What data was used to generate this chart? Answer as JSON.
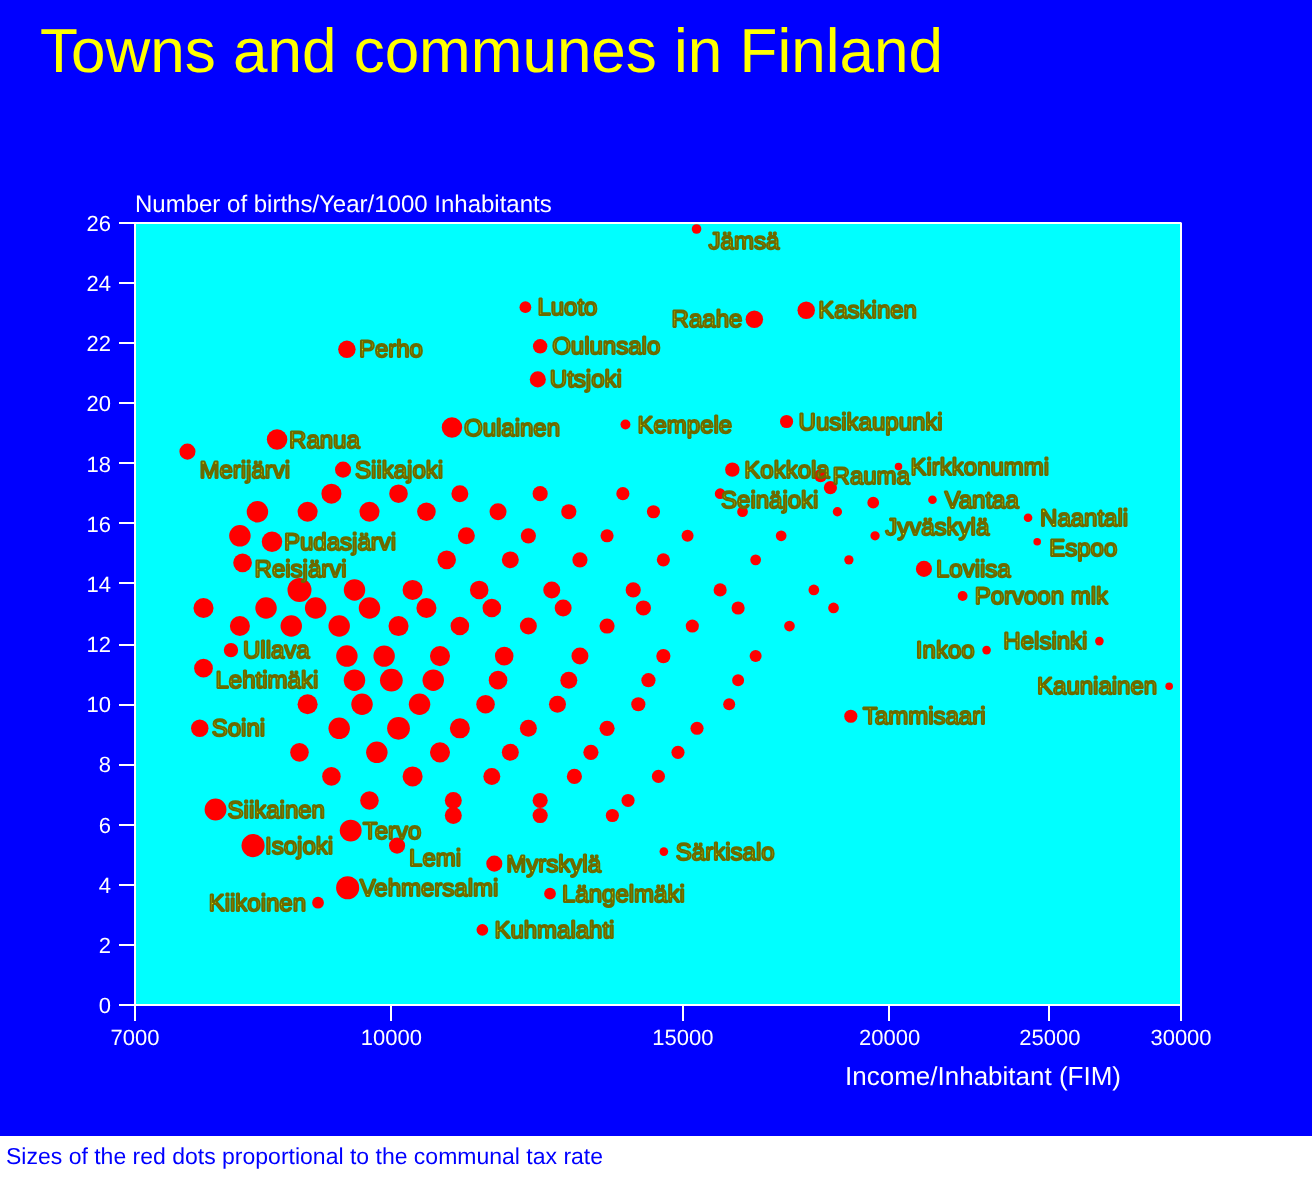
{
  "chart_data": {
    "type": "bubble",
    "title": "Towns and communes in Finland",
    "xlabel": "Income/Inhabitant (FIM)",
    "ylabel": "Number of births/Year/1000 Inhabitants",
    "log": "x",
    "marker": "circle",
    "xlim": [
      7000,
      30000
    ],
    "ylim": [
      0,
      26
    ],
    "xticks": [
      7000,
      10000,
      15000,
      20000,
      25000,
      30000
    ],
    "yticks": [
      0,
      2,
      4,
      6,
      8,
      10,
      12,
      14,
      16,
      18,
      20,
      22,
      24,
      26
    ],
    "series": [
      {
        "color": "#ff0000",
        "x": [
          15290,
          17810,
          16570,
          12050,
          12300,
          9400,
          12260,
          10880,
          13850,
          17330,
          8530,
          7530,
          9350,
          20250,
          16070,
          18170,
          18420,
          21230,
          19550,
          24250,
          24560,
          8470,
          8130,
          20980,
          22140,
          26780,
          22890,
          8000,
          7700,
          29510,
          18950,
          7660,
          7830,
          9450,
          8250,
          10080,
          14610,
          11540,
          9410,
          12470,
          9030,
          11350,
          9200,
          10100,
          11000,
          12300,
          13800,
          15800,
          8300,
          8900,
          9700,
          10500,
          11600,
          12800,
          14400,
          16300,
          18600,
          8100,
          11100,
          12100,
          13500,
          15100,
          17200,
          19600,
          10800,
          11800,
          13000,
          14600,
          16600,
          18900,
          8800,
          9500,
          10300,
          11300,
          12500,
          14000,
          15800,
          18000,
          7700,
          8400,
          9000,
          9700,
          10500,
          11500,
          12700,
          14200,
          16200,
          18500,
          8100,
          8700,
          9300,
          10100,
          11000,
          12100,
          13500,
          15200,
          17400,
          9400,
          9900,
          10700,
          11700,
          13000,
          14600,
          16600,
          9500,
          10000,
          10600,
          11600,
          12800,
          14300,
          16200,
          8900,
          9600,
          10400,
          11400,
          12600,
          14100,
          16000,
          9300,
          10100,
          11000,
          12100,
          13500,
          15300,
          8800,
          9800,
          10700,
          11800,
          13200,
          14900,
          9200,
          10300,
          11500,
          12900,
          14500,
          9700,
          10900,
          12300,
          13900,
          10900,
          12300,
          13600
        ],
        "values": [
          25.8,
          23.1,
          22.8,
          23.2,
          21.9,
          21.8,
          20.8,
          19.2,
          19.3,
          19.4,
          18.8,
          18.4,
          17.8,
          17.9,
          17.8,
          17.6,
          17.2,
          16.8,
          16.7,
          16.2,
          15.4,
          15.4,
          14.7,
          14.5,
          13.6,
          12.1,
          11.8,
          11.8,
          11.2,
          10.6,
          9.6,
          9.2,
          6.5,
          5.8,
          5.3,
          5.3,
          5.1,
          4.7,
          3.9,
          3.7,
          3.4,
          2.5,
          17.0,
          17.0,
          17.0,
          17.0,
          17.0,
          17.0,
          16.4,
          16.4,
          16.4,
          16.4,
          16.4,
          16.4,
          16.4,
          16.4,
          16.4,
          15.6,
          15.6,
          15.6,
          15.6,
          15.6,
          15.6,
          15.6,
          14.8,
          14.8,
          14.8,
          14.8,
          14.8,
          14.8,
          13.8,
          13.8,
          13.8,
          13.8,
          13.8,
          13.8,
          13.8,
          13.8,
          13.2,
          13.2,
          13.2,
          13.2,
          13.2,
          13.2,
          13.2,
          13.2,
          13.2,
          13.2,
          12.6,
          12.6,
          12.6,
          12.6,
          12.6,
          12.6,
          12.6,
          12.6,
          12.6,
          11.6,
          11.6,
          11.6,
          11.6,
          11.6,
          11.6,
          11.6,
          10.8,
          10.8,
          10.8,
          10.8,
          10.8,
          10.8,
          10.8,
          10.0,
          10.0,
          10.0,
          10.0,
          10.0,
          10.0,
          10.0,
          9.2,
          9.2,
          9.2,
          9.2,
          9.2,
          9.2,
          8.4,
          8.4,
          8.4,
          8.4,
          8.4,
          8.4,
          7.6,
          7.6,
          7.6,
          7.6,
          7.6,
          6.8,
          6.8,
          6.8,
          6.8,
          6.3,
          6.3,
          6.3
        ],
        "sizes": [
          0.16,
          0.53,
          0.53,
          0.24,
          0.36,
          0.53,
          0.45,
          0.73,
          0.17,
          0.3,
          0.73,
          0.45,
          0.45,
          0.1,
          0.36,
          0.3,
          0.3,
          0.13,
          0.24,
          0.13,
          0.1,
          0.73,
          0.61,
          0.45,
          0.17,
          0.13,
          0.13,
          0.36,
          0.61,
          0.1,
          0.3,
          0.53,
          0.83,
          0.83,
          0.93,
          0.45,
          0.13,
          0.45,
          0.93,
          0.24,
          0.24,
          0.24,
          0.7,
          0.6,
          0.5,
          0.4,
          0.3,
          0.2,
          0.8,
          0.7,
          0.7,
          0.6,
          0.5,
          0.4,
          0.3,
          0.2,
          0.15,
          0.8,
          0.5,
          0.4,
          0.3,
          0.25,
          0.2,
          0.15,
          0.6,
          0.5,
          0.4,
          0.3,
          0.2,
          0.15,
          1.0,
          0.8,
          0.7,
          0.6,
          0.5,
          0.4,
          0.3,
          0.2,
          0.7,
          0.8,
          0.8,
          0.8,
          0.7,
          0.6,
          0.5,
          0.4,
          0.3,
          0.2,
          0.7,
          0.8,
          0.8,
          0.7,
          0.6,
          0.5,
          0.4,
          0.3,
          0.2,
          0.8,
          0.8,
          0.7,
          0.6,
          0.5,
          0.35,
          0.25,
          0.8,
          0.9,
          0.8,
          0.6,
          0.5,
          0.35,
          0.25,
          0.7,
          0.8,
          0.8,
          0.6,
          0.5,
          0.35,
          0.25,
          0.8,
          0.9,
          0.7,
          0.5,
          0.4,
          0.3,
          0.6,
          0.8,
          0.7,
          0.5,
          0.4,
          0.3,
          0.6,
          0.7,
          0.5,
          0.4,
          0.3,
          0.6,
          0.5,
          0.4,
          0.3,
          0.5,
          0.4,
          0.3
        ]
      }
    ],
    "annotations": [
      {
        "text": "Jämsä",
        "x": 15290,
        "y": 25.8
      },
      {
        "text": "Kaskinen",
        "x": 17810,
        "y": 23.1
      },
      {
        "text": "Raahe",
        "x": 16570,
        "y": 22.8
      },
      {
        "text": "Luoto",
        "x": 12050,
        "y": 23.2
      },
      {
        "text": "Oulunsalo",
        "x": 12300,
        "y": 21.9
      },
      {
        "text": "Perho",
        "x": 9400,
        "y": 21.8
      },
      {
        "text": "Utsjoki",
        "x": 12260,
        "y": 20.8
      },
      {
        "text": "Oulainen",
        "x": 10880,
        "y": 19.2
      },
      {
        "text": "Kempele",
        "x": 13850,
        "y": 19.3
      },
      {
        "text": "Uusikaupunki",
        "x": 17330,
        "y": 19.4
      },
      {
        "text": "Ranua",
        "x": 8530,
        "y": 18.8
      },
      {
        "text": "Merijärvi",
        "x": 7530,
        "y": 18.4
      },
      {
        "text": "Siikajoki",
        "x": 9350,
        "y": 17.8
      },
      {
        "text": "Kirkkonummi",
        "x": 20250,
        "y": 17.9
      },
      {
        "text": "Kokkola",
        "x": 16070,
        "y": 17.8
      },
      {
        "text": "Rauma",
        "x": 18170,
        "y": 17.6
      },
      {
        "text": "Seinäjoki",
        "x": 18420,
        "y": 17.2
      },
      {
        "text": "Vantaa",
        "x": 21230,
        "y": 16.8
      },
      {
        "text": "Jyväskylä",
        "x": 19550,
        "y": 16.7
      },
      {
        "text": "Naantali",
        "x": 24250,
        "y": 16.2
      },
      {
        "text": "Espoo",
        "x": 24560,
        "y": 15.4
      },
      {
        "text": "Pudasjärvi",
        "x": 8470,
        "y": 15.4
      },
      {
        "text": "Reisjärvi",
        "x": 8130,
        "y": 14.7
      },
      {
        "text": "Loviisa",
        "x": 20980,
        "y": 14.5
      },
      {
        "text": "Porvoon mlk",
        "x": 22140,
        "y": 13.6
      },
      {
        "text": "Helsinki",
        "x": 26780,
        "y": 12.1
      },
      {
        "text": "Inkoo",
        "x": 22890,
        "y": 11.8
      },
      {
        "text": "Ullava",
        "x": 8000,
        "y": 11.8
      },
      {
        "text": "Lehtimäki",
        "x": 7700,
        "y": 11.2
      },
      {
        "text": "Kauniainen",
        "x": 29510,
        "y": 10.6
      },
      {
        "text": "Tammisaari",
        "x": 18950,
        "y": 9.6
      },
      {
        "text": "Soini",
        "x": 7660,
        "y": 9.2
      },
      {
        "text": "Siikainen",
        "x": 7830,
        "y": 6.5
      },
      {
        "text": "Tervo",
        "x": 9450,
        "y": 5.8
      },
      {
        "text": "Isojoki",
        "x": 8250,
        "y": 5.3
      },
      {
        "text": "Lemi",
        "x": 10080,
        "y": 5.3
      },
      {
        "text": "Särkisalo",
        "x": 14610,
        "y": 5.1
      },
      {
        "text": "Myrskylä",
        "x": 11540,
        "y": 4.7
      },
      {
        "text": "Vehmersalmi",
        "x": 9410,
        "y": 3.9
      },
      {
        "text": "Längelmäki",
        "x": 12470,
        "y": 3.7
      },
      {
        "text": "Kiikoinen",
        "x": 9030,
        "y": 3.4
      },
      {
        "text": "Kuhmalahti",
        "x": 11350,
        "y": 2.5
      },
      "Sizes of the red dots proportional to the communal tax rate"
    ]
  }
}
